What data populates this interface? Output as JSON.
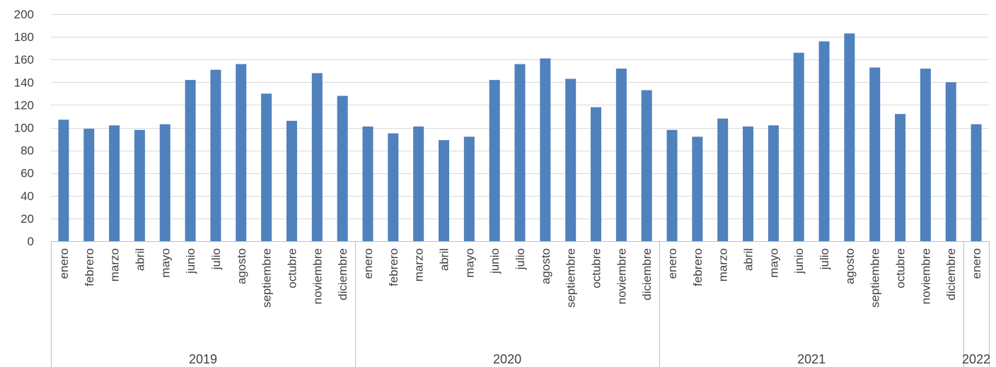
{
  "chart_data": {
    "type": "bar",
    "title": "",
    "xlabel": "",
    "ylabel": "",
    "ylim": [
      0,
      200
    ],
    "yticks": [
      0,
      20,
      40,
      60,
      80,
      100,
      120,
      140,
      160,
      180,
      200
    ],
    "grid": true,
    "legend": "none",
    "bar_color": "#4f81bd",
    "groups": [
      {
        "label": "2019",
        "count": 12
      },
      {
        "label": "2020",
        "count": 12
      },
      {
        "label": "2021",
        "count": 12
      },
      {
        "label": "2022",
        "count": 1
      }
    ],
    "categories": [
      "enero",
      "febrero",
      "marzo",
      "abril",
      "mayo",
      "junio",
      "julio",
      "agosto",
      "septiembre",
      "octubre",
      "noviembre",
      "diciembre",
      "enero",
      "febrero",
      "marzo",
      "abril",
      "mayo",
      "junio",
      "julio",
      "agosto",
      "septiembre",
      "octubre",
      "noviembre",
      "diciembre",
      "enero",
      "febrero",
      "marzo",
      "abril",
      "mayo",
      "junio",
      "julio",
      "agosto",
      "septiembre",
      "octubre",
      "noviembre",
      "diciembre",
      "enero"
    ],
    "values": [
      107,
      99,
      102,
      98,
      103,
      142,
      151,
      156,
      130,
      106,
      148,
      128,
      101,
      95,
      101,
      89,
      92,
      142,
      156,
      161,
      143,
      118,
      152,
      133,
      98,
      92,
      108,
      101,
      102,
      166,
      176,
      183,
      153,
      112,
      152,
      140,
      103
    ]
  }
}
